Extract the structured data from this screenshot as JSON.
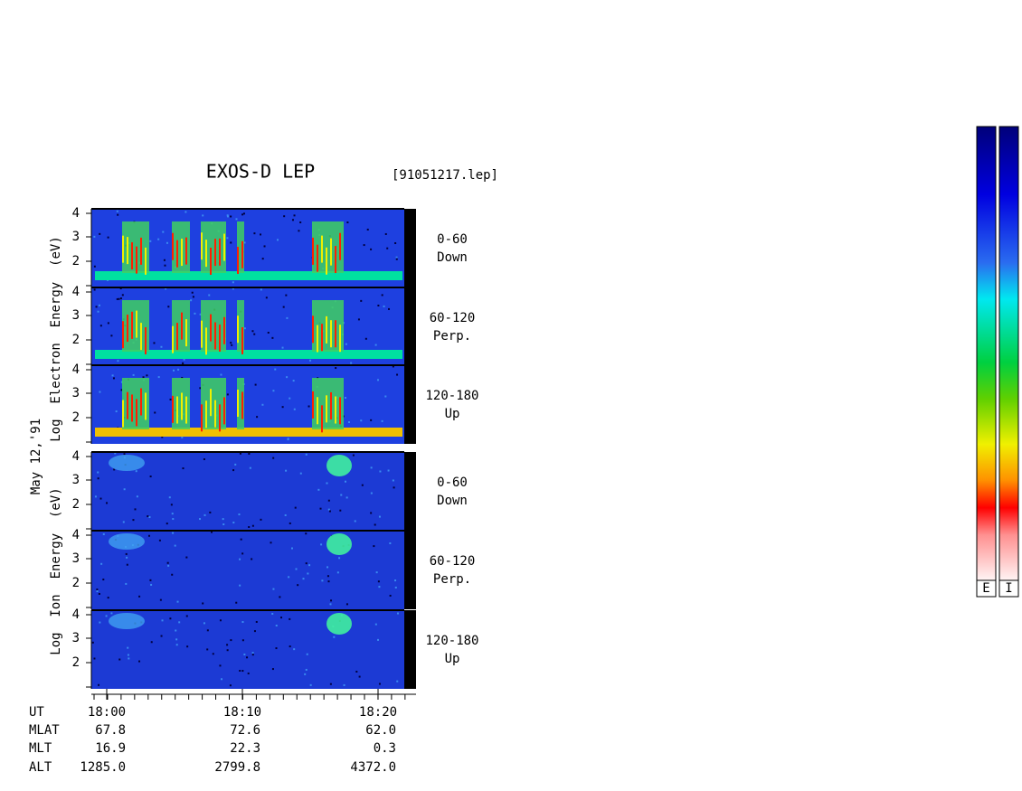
{
  "title": "EXOS-D LEP",
  "file": "[91051217.lep]",
  "electron_label": "Log  Electron  Energy  (eV)",
  "date": "May 12,'91",
  "ion_label": "Log  Ion  Energy  (eV)",
  "panels": [
    {
      "ticks": [
        "2",
        "3",
        "4"
      ],
      "angle": "0-60",
      "direction": "Down"
    },
    {
      "ticks": [
        "2",
        "3",
        "4"
      ],
      "angle": "60-120",
      "direction": "Perp."
    },
    {
      "ticks": [
        "2",
        "3",
        "4"
      ],
      "angle": "120-180",
      "direction": "Up"
    },
    {
      "ticks": [
        "2",
        "3",
        "4"
      ],
      "angle": "0-60",
      "direction": "Down"
    },
    {
      "ticks": [
        "2",
        "3",
        "4"
      ],
      "angle": "60-120",
      "direction": "Perp."
    },
    {
      "ticks": [
        "2",
        "3",
        "4"
      ],
      "angle": "120-180",
      "direction": "Up"
    }
  ],
  "rows": [
    {
      "label": "UT",
      "values": [
        "18:00",
        "18:10",
        "18:20"
      ]
    },
    {
      "label": "MLAT",
      "values": [
        "67.8",
        "72.6",
        "62.0"
      ]
    },
    {
      "label": "MLT",
      "values": [
        "16.9",
        "22.3",
        "0.3"
      ]
    },
    {
      "label": "ALT",
      "values": [
        "1285.0",
        "2799.8",
        "4372.0"
      ]
    }
  ],
  "colorbars": [
    "E",
    "I"
  ]
}
